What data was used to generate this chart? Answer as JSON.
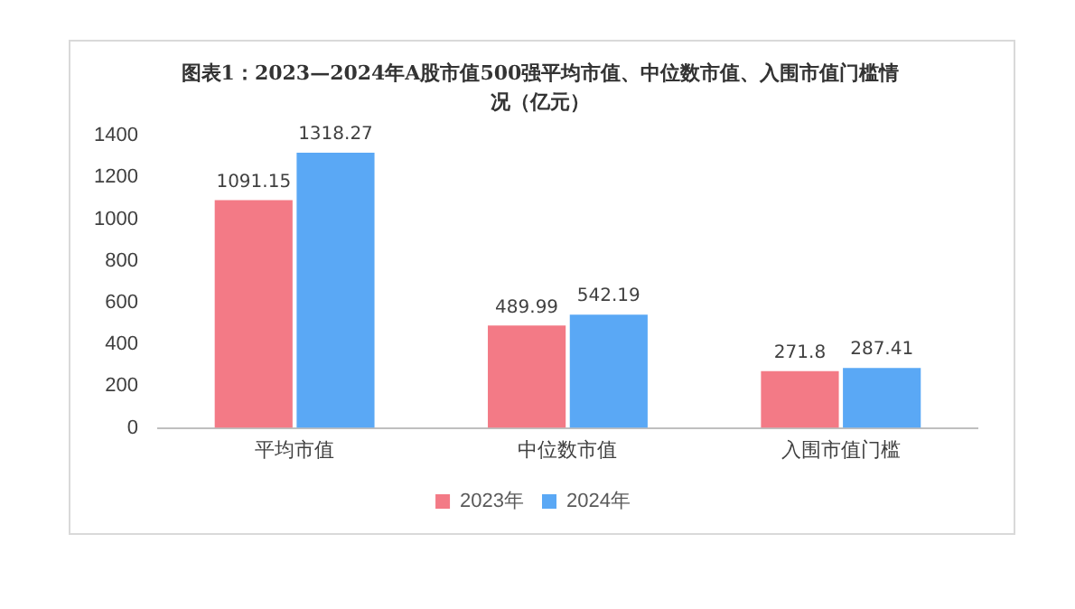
{
  "chart_data": {
    "type": "bar",
    "title": "图表1：2023—2024年A股市值500强平均市值、中位数市值、入围市值门槛情况（亿元）",
    "categories": [
      "平均市值",
      "中位数市值",
      "入围市值门槛"
    ],
    "series": [
      {
        "name": "2023年",
        "color": "#f37a86",
        "values": [
          1091.15,
          489.99,
          271.8
        ]
      },
      {
        "name": "2024年",
        "color": "#5aa8f5",
        "values": [
          1318.27,
          542.19,
          287.41
        ]
      }
    ],
    "ylim": [
      0,
      1400
    ],
    "yticks": [
      0,
      200,
      400,
      600,
      800,
      1000,
      1200,
      1400
    ],
    "grid": false,
    "legend": "bottom",
    "data_labels": true
  }
}
